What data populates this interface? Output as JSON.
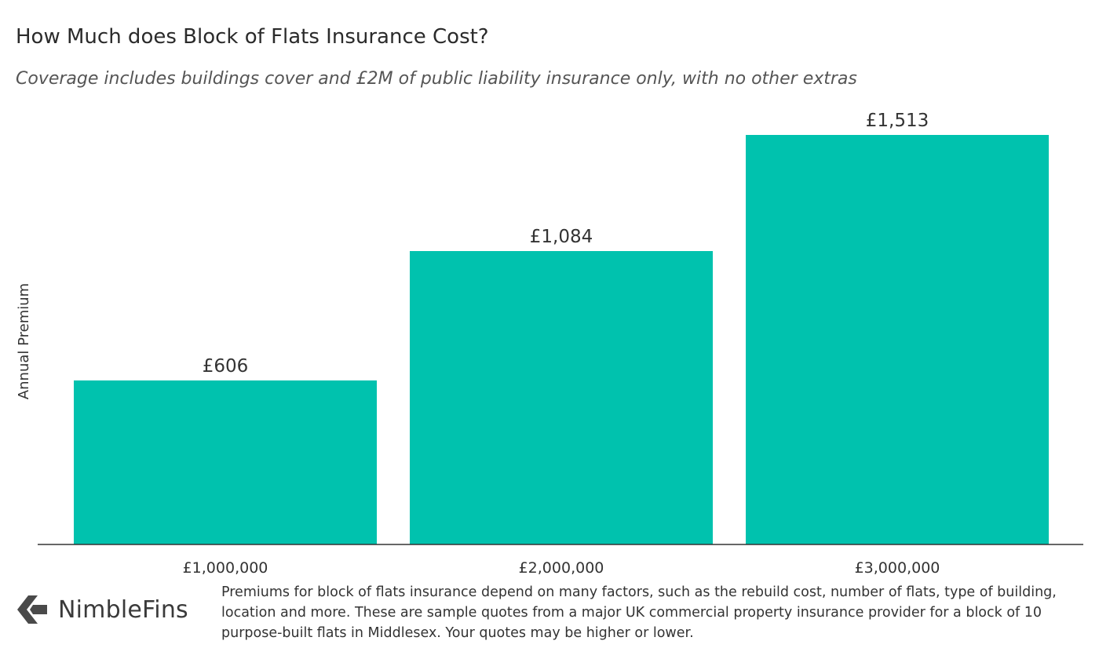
{
  "chart_data": {
    "type": "bar",
    "title": "How Much does Block of Flats Insurance Cost?",
    "subtitle": "Coverage includes buildings cover and £2M of public liability insurance only, with no other extras",
    "xlabel": "",
    "ylabel": "Annual Premium",
    "categories": [
      "£1,000,000",
      "£2,000,000",
      "£3,000,000"
    ],
    "values": [
      606,
      1084,
      1513
    ],
    "value_labels": [
      "£606",
      "£1,084",
      "£1,513"
    ],
    "ylim": [
      0,
      1513
    ],
    "grid": false,
    "bar_color": "#00c2ae"
  },
  "footer": {
    "brand": "NimbleFins",
    "note": "Premiums for block of flats insurance depend on many factors, such as the rebuild cost, number of flats, type of building, location and more. These are sample quotes from a major UK commercial property insurance provider for a block of 10 purpose-built flats in Middlesex. Your quotes may be higher or lower."
  },
  "colors": {
    "brand_mark": "#4a4a4a",
    "axis": "#333333"
  }
}
